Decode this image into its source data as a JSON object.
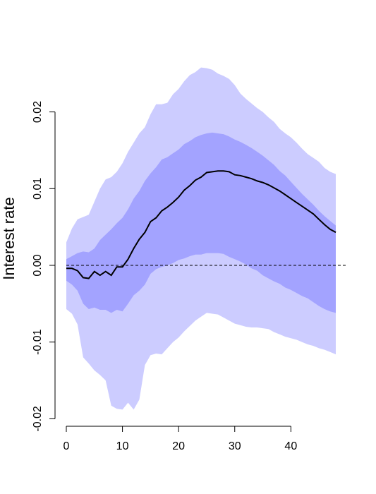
{
  "chart_data": {
    "type": "area",
    "title": "",
    "xlabel": "",
    "ylabel": "Interest rate",
    "xlim": [
      0,
      48
    ],
    "ylim": [
      -0.02,
      0.027
    ],
    "grid": false,
    "x_ticks": [
      0,
      10,
      20,
      30,
      40
    ],
    "x_tick_labels": [
      "0",
      "10",
      "20",
      "30",
      "40"
    ],
    "y_ticks": [
      -0.02,
      -0.01,
      0.0,
      0.01,
      0.02
    ],
    "y_tick_labels": [
      "-0.02",
      "-0.01",
      "0.00",
      "0.01",
      "0.02"
    ],
    "reference_line": {
      "y": 0.0,
      "style": "dashed"
    },
    "colors": {
      "outer_band": "#ccccff",
      "inner_band": "#a3a3ff",
      "median_line": "#000000"
    },
    "x": [
      0,
      1,
      2,
      3,
      4,
      5,
      6,
      7,
      8,
      9,
      10,
      11,
      12,
      13,
      14,
      15,
      16,
      17,
      18,
      19,
      20,
      21,
      22,
      23,
      24,
      25,
      26,
      27,
      28,
      29,
      30,
      31,
      32,
      33,
      34,
      35,
      36,
      37,
      38,
      39,
      40,
      41,
      42,
      43,
      44,
      45,
      46,
      47,
      48
    ],
    "series": [
      {
        "role": "median",
        "values": [
          -0.0004,
          -0.0004,
          -0.0007,
          -0.0016,
          -0.0017,
          -0.0008,
          -0.0013,
          -0.0008,
          -0.0013,
          -0.0002,
          -0.0002,
          0.0008,
          0.0022,
          0.0034,
          0.0043,
          0.0057,
          0.0062,
          0.0071,
          0.0076,
          0.0082,
          0.0089,
          0.0098,
          0.0104,
          0.0111,
          0.0115,
          0.0121,
          0.0122,
          0.0123,
          0.0123,
          0.0122,
          0.0118,
          0.0117,
          0.0115,
          0.0113,
          0.011,
          0.0108,
          0.0105,
          0.0101,
          0.0097,
          0.0092,
          0.0087,
          0.0082,
          0.0077,
          0.0072,
          0.0067,
          0.006,
          0.0053,
          0.0047,
          0.0043
        ]
      },
      {
        "role": "inner_band_upper",
        "values": [
          0.0008,
          0.0012,
          0.0016,
          0.0018,
          0.0017,
          0.0022,
          0.0033,
          0.004,
          0.0047,
          0.0055,
          0.0062,
          0.0073,
          0.0087,
          0.0097,
          0.011,
          0.012,
          0.0128,
          0.0138,
          0.0141,
          0.0146,
          0.0151,
          0.0158,
          0.0162,
          0.0167,
          0.017,
          0.0172,
          0.0173,
          0.0172,
          0.0171,
          0.0168,
          0.0164,
          0.0161,
          0.0157,
          0.0153,
          0.0148,
          0.0143,
          0.0137,
          0.0131,
          0.0123,
          0.0117,
          0.0109,
          0.0101,
          0.0093,
          0.0086,
          0.0079,
          0.0071,
          0.0064,
          0.0058,
          0.0052
        ]
      },
      {
        "role": "inner_band_lower",
        "values": [
          -0.002,
          -0.0025,
          -0.0033,
          -0.005,
          -0.0057,
          -0.0055,
          -0.0058,
          -0.0058,
          -0.0062,
          -0.0058,
          -0.006,
          -0.005,
          -0.0039,
          -0.0033,
          -0.0025,
          -0.0011,
          -0.0005,
          -0.0002,
          0.0,
          0.0003,
          0.0007,
          0.0009,
          0.0012,
          0.0014,
          0.0014,
          0.0016,
          0.0016,
          0.0016,
          0.0015,
          0.0011,
          0.0008,
          0.0005,
          0.0001,
          -0.0004,
          -0.0007,
          -0.0013,
          -0.0017,
          -0.0021,
          -0.0024,
          -0.0029,
          -0.0032,
          -0.0036,
          -0.004,
          -0.0043,
          -0.0048,
          -0.0053,
          -0.0057,
          -0.006,
          -0.0062
        ]
      },
      {
        "role": "outer_band_upper",
        "values": [
          0.003,
          0.0048,
          0.006,
          0.0063,
          0.0066,
          0.0083,
          0.01,
          0.0112,
          0.0115,
          0.0122,
          0.0133,
          0.0148,
          0.016,
          0.0172,
          0.018,
          0.0197,
          0.021,
          0.021,
          0.0212,
          0.0223,
          0.023,
          0.024,
          0.0248,
          0.0252,
          0.0258,
          0.0257,
          0.0255,
          0.025,
          0.0247,
          0.0243,
          0.0235,
          0.0224,
          0.0217,
          0.0211,
          0.0205,
          0.02,
          0.0193,
          0.0187,
          0.0178,
          0.0172,
          0.0167,
          0.016,
          0.0152,
          0.0145,
          0.014,
          0.0135,
          0.0127,
          0.0122,
          0.0119
        ]
      },
      {
        "role": "outer_band_lower",
        "values": [
          -0.0057,
          -0.0063,
          -0.0077,
          -0.012,
          -0.0128,
          -0.0137,
          -0.0143,
          -0.015,
          -0.0183,
          -0.0187,
          -0.0188,
          -0.0179,
          -0.0188,
          -0.0175,
          -0.013,
          -0.0117,
          -0.0115,
          -0.0116,
          -0.0108,
          -0.01,
          -0.0094,
          -0.0086,
          -0.0079,
          -0.0072,
          -0.0067,
          -0.0062,
          -0.0063,
          -0.0064,
          -0.0068,
          -0.0072,
          -0.0076,
          -0.0078,
          -0.008,
          -0.0081,
          -0.0081,
          -0.0082,
          -0.0083,
          -0.0087,
          -0.009,
          -0.0093,
          -0.0095,
          -0.0097,
          -0.01,
          -0.0103,
          -0.0105,
          -0.0108,
          -0.011,
          -0.0113,
          -0.0116
        ]
      }
    ]
  }
}
